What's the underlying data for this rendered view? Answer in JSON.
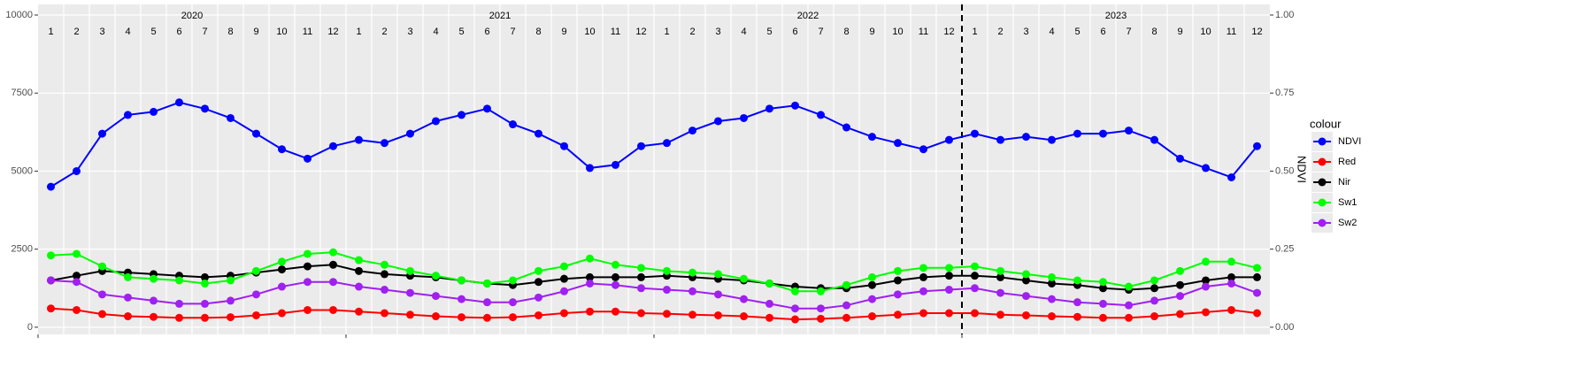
{
  "chart_data": {
    "type": "line",
    "years": [
      "2020",
      "2021",
      "2022",
      "2023"
    ],
    "months": [
      "1",
      "2",
      "3",
      "4",
      "5",
      "6",
      "7",
      "8",
      "9",
      "10",
      "11",
      "12"
    ],
    "x": [
      "2020-01",
      "2020-02",
      "2020-03",
      "2020-04",
      "2020-05",
      "2020-06",
      "2020-07",
      "2020-08",
      "2020-09",
      "2020-10",
      "2020-11",
      "2020-12",
      "2021-01",
      "2021-02",
      "2021-03",
      "2021-04",
      "2021-05",
      "2021-06",
      "2021-07",
      "2021-08",
      "2021-09",
      "2021-10",
      "2021-11",
      "2021-12",
      "2022-01",
      "2022-02",
      "2022-03",
      "2022-04",
      "2022-05",
      "2022-06",
      "2022-07",
      "2022-08",
      "2022-09",
      "2022-10",
      "2022-11",
      "2022-12",
      "2023-01",
      "2023-02",
      "2023-03",
      "2023-04",
      "2023-05",
      "2023-06",
      "2023-07",
      "2023-08",
      "2023-09",
      "2023-10",
      "2023-11",
      "2023-12"
    ],
    "series": [
      {
        "name": "NDVI",
        "color": "#0000ff",
        "axis": "y2",
        "values": [
          0.45,
          0.5,
          0.62,
          0.68,
          0.69,
          0.72,
          0.7,
          0.67,
          0.62,
          0.57,
          0.54,
          0.58,
          0.6,
          0.59,
          0.62,
          0.66,
          0.68,
          0.7,
          0.65,
          0.62,
          0.58,
          0.51,
          0.52,
          0.58,
          0.59,
          0.63,
          0.66,
          0.67,
          0.7,
          0.71,
          0.68,
          0.64,
          0.61,
          0.59,
          0.57,
          0.6,
          0.62,
          0.6,
          0.61,
          0.6,
          0.62,
          0.62,
          0.63,
          0.6,
          0.54,
          0.51,
          0.48,
          0.58
        ]
      },
      {
        "name": "Red",
        "color": "#ff0000",
        "values": [
          600,
          550,
          420,
          350,
          330,
          300,
          300,
          320,
          380,
          450,
          550,
          550,
          500,
          450,
          400,
          350,
          320,
          300,
          320,
          380,
          450,
          500,
          500,
          450,
          430,
          400,
          380,
          350,
          300,
          250,
          270,
          300,
          350,
          400,
          450,
          450,
          450,
          400,
          380,
          350,
          330,
          300,
          300,
          350,
          420,
          480,
          550,
          450
        ]
      },
      {
        "name": "Nir",
        "color": "#000000",
        "values": [
          1500,
          1650,
          1800,
          1750,
          1700,
          1650,
          1600,
          1650,
          1750,
          1850,
          1950,
          2000,
          1800,
          1700,
          1650,
          1600,
          1500,
          1400,
          1350,
          1450,
          1550,
          1600,
          1600,
          1600,
          1650,
          1600,
          1550,
          1500,
          1400,
          1300,
          1250,
          1250,
          1350,
          1500,
          1600,
          1650,
          1650,
          1600,
          1500,
          1400,
          1350,
          1250,
          1200,
          1250,
          1350,
          1500,
          1600,
          1600
        ]
      },
      {
        "name": "Sw1",
        "color": "#00ff00",
        "values": [
          2300,
          2350,
          1950,
          1600,
          1550,
          1500,
          1400,
          1500,
          1800,
          2100,
          2350,
          2400,
          2150,
          2000,
          1800,
          1650,
          1500,
          1400,
          1500,
          1800,
          1950,
          2200,
          2000,
          1900,
          1800,
          1750,
          1700,
          1550,
          1400,
          1150,
          1150,
          1350,
          1600,
          1800,
          1900,
          1900,
          1950,
          1800,
          1700,
          1600,
          1500,
          1450,
          1300,
          1500,
          1800,
          2100,
          2100,
          1900
        ]
      },
      {
        "name": "Sw2",
        "color": "#a020f0",
        "values": [
          1500,
          1450,
          1050,
          950,
          850,
          750,
          750,
          850,
          1050,
          1300,
          1450,
          1450,
          1300,
          1200,
          1100,
          1000,
          900,
          800,
          800,
          950,
          1150,
          1400,
          1350,
          1250,
          1200,
          1150,
          1050,
          900,
          750,
          600,
          600,
          700,
          900,
          1050,
          1150,
          1200,
          1250,
          1100,
          1000,
          900,
          800,
          750,
          700,
          850,
          1000,
          1300,
          1400,
          1100
        ]
      }
    ],
    "ylim": [
      -230,
      10340
    ],
    "yticks": [
      0,
      2500,
      5000,
      7500,
      10000
    ],
    "y2lim": [
      -0.023,
      1.034
    ],
    "y2ticks": [
      {
        "value": 0,
        "label": "0.00"
      },
      {
        "value": 0.25,
        "label": "0.25"
      },
      {
        "value": 0.5,
        "label": "0.50"
      },
      {
        "value": 0.75,
        "label": "0.75"
      },
      {
        "value": 1,
        "label": "1.00"
      }
    ],
    "y2label": "NDVI",
    "vline": "2023-01",
    "legend_title": "colour",
    "grid": true
  }
}
